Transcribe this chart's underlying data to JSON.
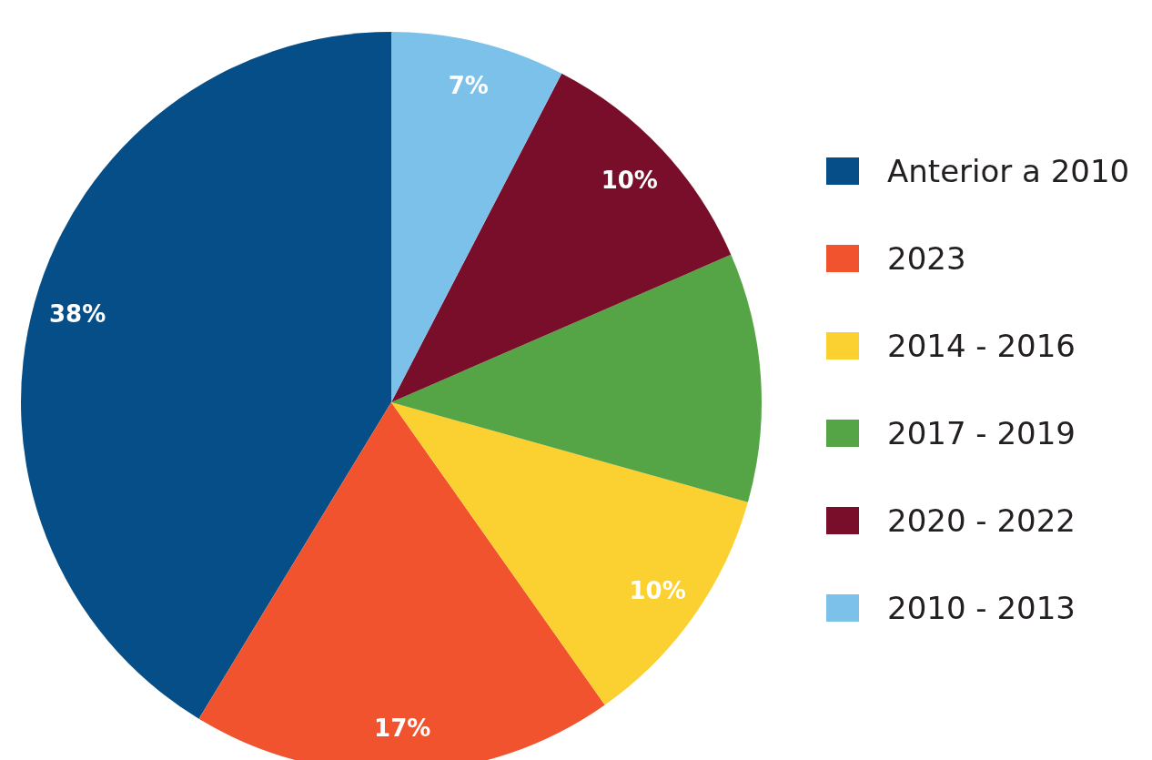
{
  "chart_data": {
    "type": "pie",
    "categories": [
      "Anterior a 2010",
      "2023",
      "2014 - 2016",
      "2017 - 2019",
      "2020 - 2022",
      "2010 - 2013"
    ],
    "values": [
      38,
      17,
      10,
      10,
      10,
      7
    ],
    "colors": [
      "#054e87",
      "#f0532d",
      "#fbd132",
      "#55a445",
      "#780e29",
      "#7bc1ea"
    ],
    "value_labels": [
      "38%",
      "17%",
      "10%",
      null,
      "10%",
      "7%"
    ],
    "legend": "right"
  }
}
